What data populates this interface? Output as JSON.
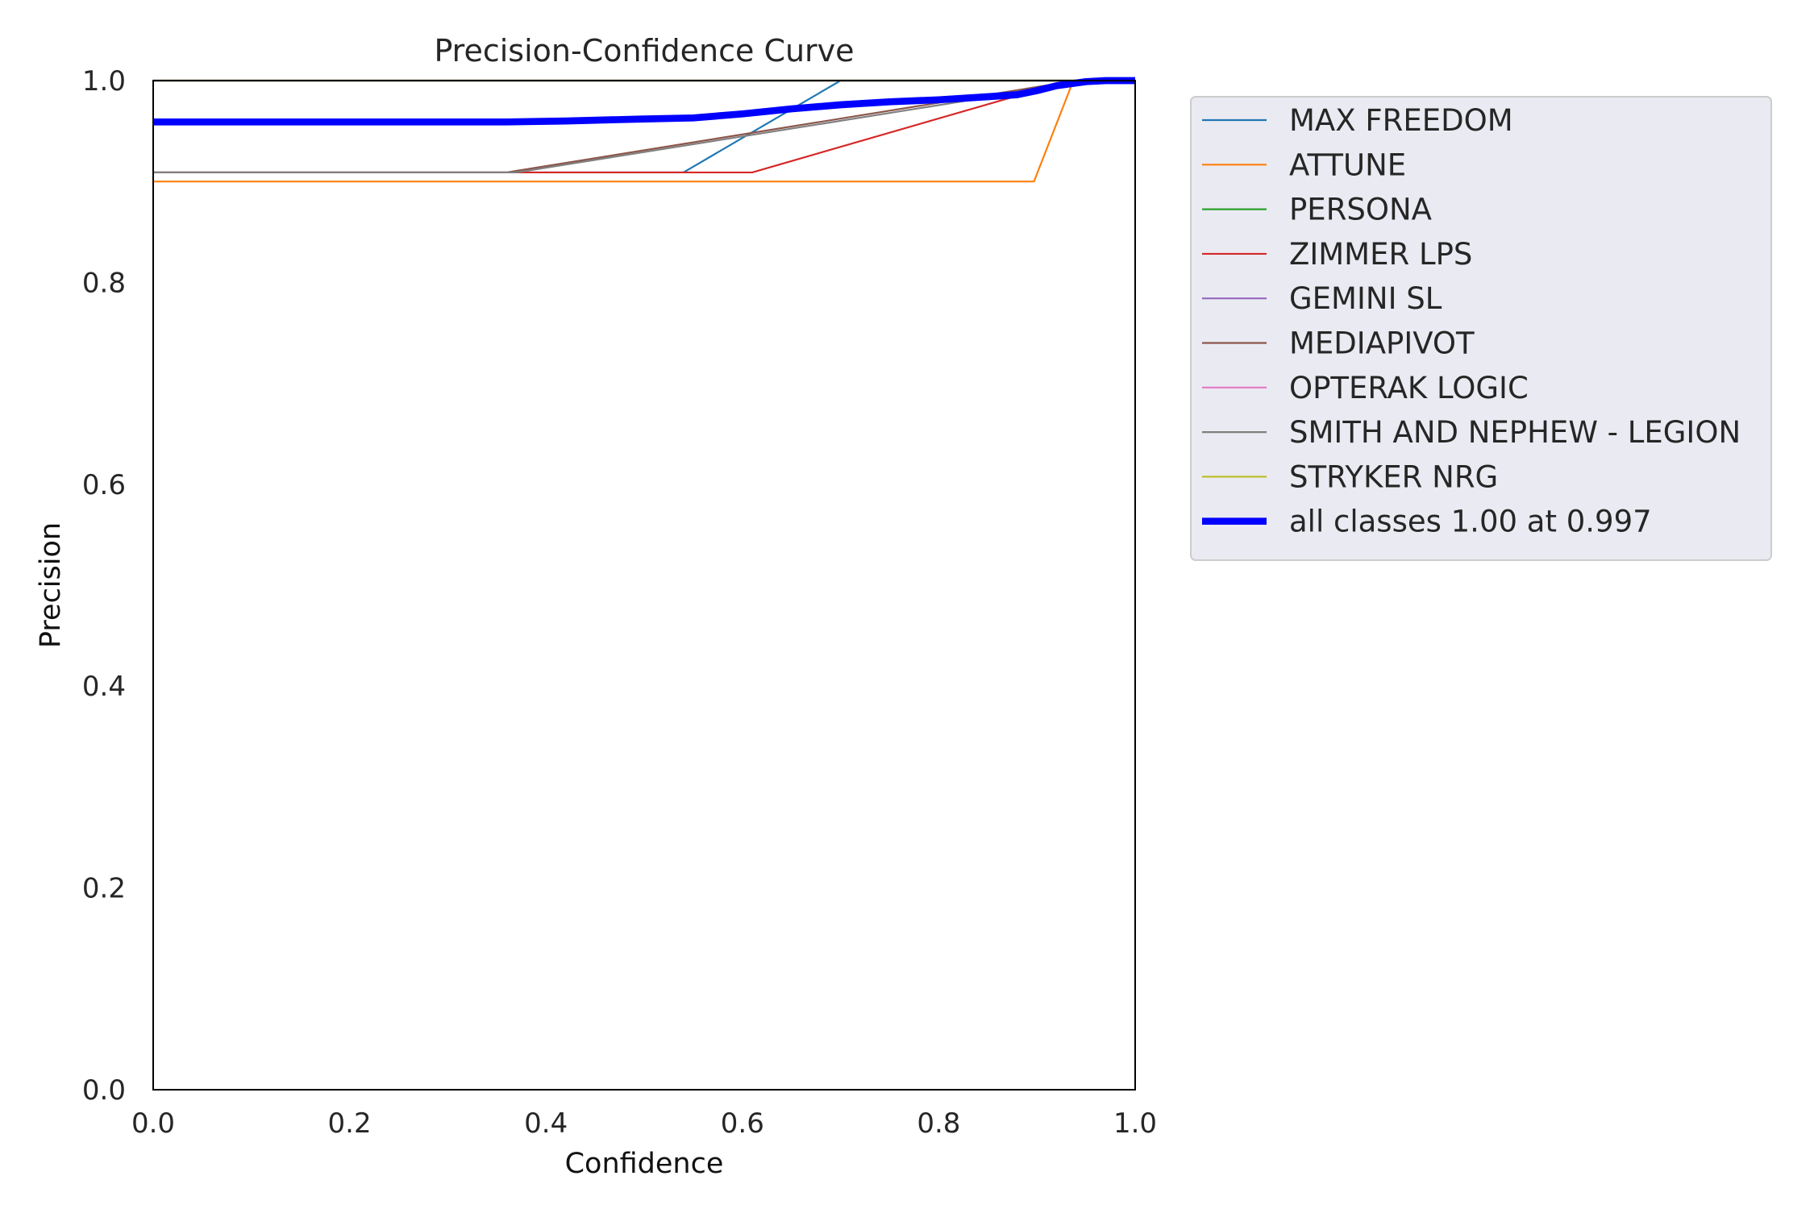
{
  "chart_data": {
    "type": "line",
    "title": "Precision-Confidence Curve",
    "xlabel": "Confidence",
    "ylabel": "Precision",
    "xlim": [
      0,
      1
    ],
    "ylim": [
      0,
      1
    ],
    "xticks": [
      "0.0",
      "0.2",
      "0.4",
      "0.6",
      "0.8",
      "1.0"
    ],
    "yticks": [
      "0.0",
      "0.2",
      "0.4",
      "0.6",
      "0.8",
      "1.0"
    ],
    "grid": false,
    "legend_position": "outside-right",
    "series": [
      {
        "name": "MAX FREEDOM",
        "color": "#1f77b4",
        "width": 1.5,
        "points": [
          [
            0.0,
            0.909
          ],
          [
            0.54,
            0.909
          ],
          [
            0.7,
            1.0
          ],
          [
            1.0,
            1.0
          ]
        ]
      },
      {
        "name": "ATTUNE",
        "color": "#ff7f0e",
        "width": 1.5,
        "points": [
          [
            0.0,
            0.9
          ],
          [
            0.897,
            0.9
          ],
          [
            0.937,
            1.0
          ],
          [
            1.0,
            1.0
          ]
        ]
      },
      {
        "name": "PERSONA",
        "color": "#2ca02c",
        "width": 1.5,
        "points": [
          [
            0.0,
            1.0
          ],
          [
            1.0,
            1.0
          ]
        ]
      },
      {
        "name": "ZIMMER LPS",
        "color": "#d62728",
        "width": 1.5,
        "points": [
          [
            0.0,
            0.909
          ],
          [
            0.61,
            0.909
          ],
          [
            0.88,
            0.985
          ],
          [
            0.94,
            1.0
          ],
          [
            1.0,
            1.0
          ]
        ]
      },
      {
        "name": "GEMINI SL",
        "color": "#9467bd",
        "width": 1.5,
        "points": [
          [
            0.0,
            1.0
          ],
          [
            1.0,
            1.0
          ]
        ]
      },
      {
        "name": "MEDIAPIVOT",
        "color": "#8c564b",
        "width": 1.5,
        "points": [
          [
            0.0,
            0.909
          ],
          [
            0.36,
            0.909
          ],
          [
            0.94,
            1.0
          ],
          [
            1.0,
            1.0
          ]
        ]
      },
      {
        "name": "OPTERAK LOGIC",
        "color": "#e377c2",
        "width": 1.5,
        "points": [
          [
            0.0,
            1.0
          ],
          [
            1.0,
            1.0
          ]
        ]
      },
      {
        "name": "SMITH AND NEPHEW - LEGION",
        "color": "#7f7f7f",
        "width": 1.5,
        "points": [
          [
            0.0,
            0.909
          ],
          [
            0.37,
            0.909
          ],
          [
            0.86,
            0.985
          ],
          [
            0.94,
            1.0
          ],
          [
            1.0,
            1.0
          ]
        ]
      },
      {
        "name": "STRYKER NRG",
        "color": "#bcbd22",
        "width": 1.5,
        "points": [
          [
            0.0,
            1.0
          ],
          [
            1.0,
            1.0
          ]
        ]
      },
      {
        "name": "all classes 1.00 at 0.997",
        "color": "#0000ff",
        "width": 6,
        "points": [
          [
            0.0,
            0.959
          ],
          [
            0.1,
            0.959
          ],
          [
            0.2,
            0.959
          ],
          [
            0.3,
            0.959
          ],
          [
            0.36,
            0.959
          ],
          [
            0.42,
            0.96
          ],
          [
            0.5,
            0.962
          ],
          [
            0.55,
            0.963
          ],
          [
            0.6,
            0.967
          ],
          [
            0.65,
            0.972
          ],
          [
            0.7,
            0.976
          ],
          [
            0.75,
            0.979
          ],
          [
            0.8,
            0.981
          ],
          [
            0.85,
            0.984
          ],
          [
            0.88,
            0.986
          ],
          [
            0.9,
            0.99
          ],
          [
            0.92,
            0.995
          ],
          [
            0.95,
            0.999
          ],
          [
            0.97,
            1.0
          ],
          [
            1.0,
            1.0
          ]
        ]
      }
    ]
  }
}
